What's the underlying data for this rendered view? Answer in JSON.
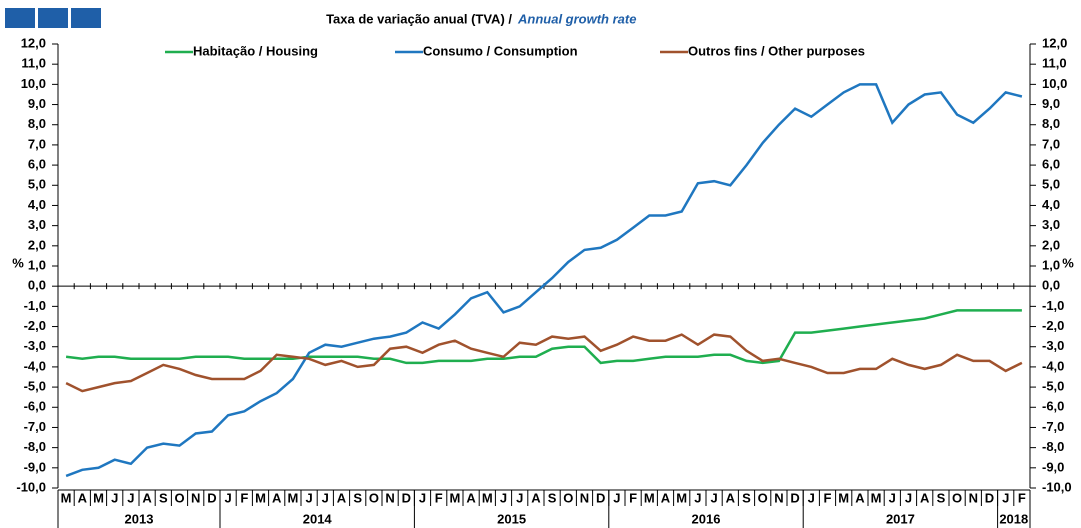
{
  "chart_data": {
    "type": "line",
    "title": "Taxa de variação anual (TVA) /",
    "title_en": "Annual growth rate",
    "y_label": "%",
    "y2_label": "%",
    "legend": "top",
    "categories": [
      "M",
      "A",
      "M",
      "J",
      "J",
      "A",
      "S",
      "O",
      "N",
      "D",
      "J",
      "F",
      "M",
      "A",
      "M",
      "J",
      "J",
      "A",
      "S",
      "O",
      "N",
      "D",
      "J",
      "F",
      "M",
      "A",
      "M",
      "J",
      "J",
      "A",
      "S",
      "O",
      "N",
      "D",
      "J",
      "F",
      "M",
      "A",
      "M",
      "J",
      "J",
      "A",
      "S",
      "O",
      "N",
      "D",
      "J",
      "F",
      "M",
      "A",
      "M",
      "J",
      "J",
      "A",
      "S",
      "O",
      "N",
      "D",
      "J",
      "F"
    ],
    "years": [
      "2013",
      "2014",
      "2015",
      "2016",
      "2017",
      "2018"
    ],
    "series": [
      {
        "name": "Habitação / Housing",
        "color": "#1fae4f",
        "values": [
          -3.5,
          -3.6,
          -3.5,
          -3.5,
          -3.6,
          -3.6,
          -3.6,
          -3.6,
          -3.5,
          -3.5,
          -3.5,
          -3.6,
          -3.6,
          -3.6,
          -3.6,
          -3.5,
          -3.5,
          -3.5,
          -3.5,
          -3.6,
          -3.6,
          -3.8,
          -3.8,
          -3.7,
          -3.7,
          -3.7,
          -3.6,
          -3.6,
          -3.5,
          -3.5,
          -3.1,
          -3.0,
          -3.0,
          -3.8,
          -3.7,
          -3.7,
          -3.6,
          -3.5,
          -3.5,
          -3.5,
          -3.4,
          -3.4,
          -3.7,
          -3.8,
          -3.7,
          -2.3,
          -2.3,
          -2.2,
          -2.1,
          -2.0,
          -1.9,
          -1.8,
          -1.7,
          -1.6,
          -1.4,
          -1.2,
          -1.2,
          -1.2,
          -1.2,
          -1.2
        ]
      },
      {
        "name": "Consumo / Consumption",
        "color": "#1f77c0",
        "values": [
          -9.4,
          -9.1,
          -9.0,
          -8.6,
          -8.8,
          -8.0,
          -7.8,
          -7.9,
          -7.3,
          -7.2,
          -6.4,
          -6.2,
          -5.7,
          -5.3,
          -4.6,
          -3.3,
          -2.9,
          -3.0,
          -2.8,
          -2.6,
          -2.5,
          -2.3,
          -1.8,
          -2.1,
          -1.4,
          -0.6,
          -0.3,
          -1.3,
          -1.0,
          -0.3,
          0.4,
          1.2,
          1.8,
          1.9,
          2.3,
          2.9,
          3.5,
          3.5,
          3.7,
          5.1,
          5.2,
          5.0,
          6.0,
          7.1,
          8.0,
          8.8,
          8.4,
          9.0,
          9.6,
          10.0,
          10.0,
          8.1,
          9.0,
          9.5,
          9.6,
          8.5,
          8.1,
          8.8,
          9.6,
          9.4
        ]
      },
      {
        "name": "Outros fins / Other purposes",
        "color": "#a0522d",
        "values": [
          -4.8,
          -5.2,
          -5.0,
          -4.8,
          -4.7,
          -4.3,
          -3.9,
          -4.1,
          -4.4,
          -4.6,
          -4.6,
          -4.6,
          -4.2,
          -3.4,
          -3.5,
          -3.6,
          -3.9,
          -3.7,
          -4.0,
          -3.9,
          -3.1,
          -3.0,
          -3.3,
          -2.9,
          -2.7,
          -3.1,
          -3.3,
          -3.5,
          -2.8,
          -2.9,
          -2.5,
          -2.6,
          -2.5,
          -3.2,
          -2.9,
          -2.5,
          -2.7,
          -2.7,
          -2.4,
          -2.9,
          -2.4,
          -2.5,
          -3.2,
          -3.7,
          -3.6,
          -3.8,
          -4.0,
          -4.3,
          -4.3,
          -4.1,
          -4.1,
          -3.6,
          -3.9,
          -4.1,
          -3.9,
          -3.4,
          -3.7,
          -3.7,
          -4.2,
          -3.8
        ]
      }
    ],
    "ylim": [
      -10,
      12
    ],
    "yticks": [
      {
        "value": 12,
        "label": "12,0"
      },
      {
        "value": 11,
        "label": "11,0"
      },
      {
        "value": 10,
        "label": "10,0"
      },
      {
        "value": 9,
        "label": "9,0"
      },
      {
        "value": 8,
        "label": "8,0"
      },
      {
        "value": 7,
        "label": "7,0"
      },
      {
        "value": 6,
        "label": "6,0"
      },
      {
        "value": 5,
        "label": "5,0"
      },
      {
        "value": 4,
        "label": "4,0"
      },
      {
        "value": 3,
        "label": "3,0"
      },
      {
        "value": 2,
        "label": "2,0"
      },
      {
        "value": 1,
        "label": "1,0"
      },
      {
        "value": 0,
        "label": "0,0"
      },
      {
        "value": -1,
        "label": "-1,0"
      },
      {
        "value": -2,
        "label": "-2,0"
      },
      {
        "value": -3,
        "label": "-3,0"
      },
      {
        "value": -4,
        "label": "-4,0"
      },
      {
        "value": -5,
        "label": "-5,0"
      },
      {
        "value": -6,
        "label": "-6,0"
      },
      {
        "value": -7,
        "label": "-7,0"
      },
      {
        "value": -8,
        "label": "-8,0"
      },
      {
        "value": -9,
        "label": "-9,0"
      },
      {
        "value": -10,
        "label": "-10,0"
      }
    ],
    "y2lim": [
      -10,
      12
    ],
    "y2ticks": [
      {
        "value": 12,
        "label": "12,0"
      },
      {
        "value": 11,
        "label": "11,0"
      },
      {
        "value": 10,
        "label": "10,0"
      },
      {
        "value": 9,
        "label": "9,0"
      },
      {
        "value": 8,
        "label": "8,0"
      },
      {
        "value": 7,
        "label": "7,0"
      },
      {
        "value": 6,
        "label": "6,0"
      },
      {
        "value": 5,
        "label": "5,0"
      },
      {
        "value": 4,
        "label": "4,0"
      },
      {
        "value": 3,
        "label": "3,0"
      },
      {
        "value": 2,
        "label": "2,0"
      },
      {
        "value": 1,
        "label": "1,0"
      },
      {
        "value": 0,
        "label": "0,0"
      },
      {
        "value": -1,
        "label": "-1,0"
      },
      {
        "value": -2,
        "label": "-2,0"
      },
      {
        "value": -3,
        "label": "-3,0"
      },
      {
        "value": -4,
        "label": "-4,0"
      },
      {
        "value": -5,
        "label": "-5,0"
      },
      {
        "value": -6,
        "label": "-6,0"
      },
      {
        "value": -7,
        "label": "-7,0"
      },
      {
        "value": -8,
        "label": "-8,0"
      },
      {
        "value": -9,
        "label": "-9,0"
      },
      {
        "value": -10,
        "label": "-10,0"
      }
    ],
    "grid": false
  }
}
